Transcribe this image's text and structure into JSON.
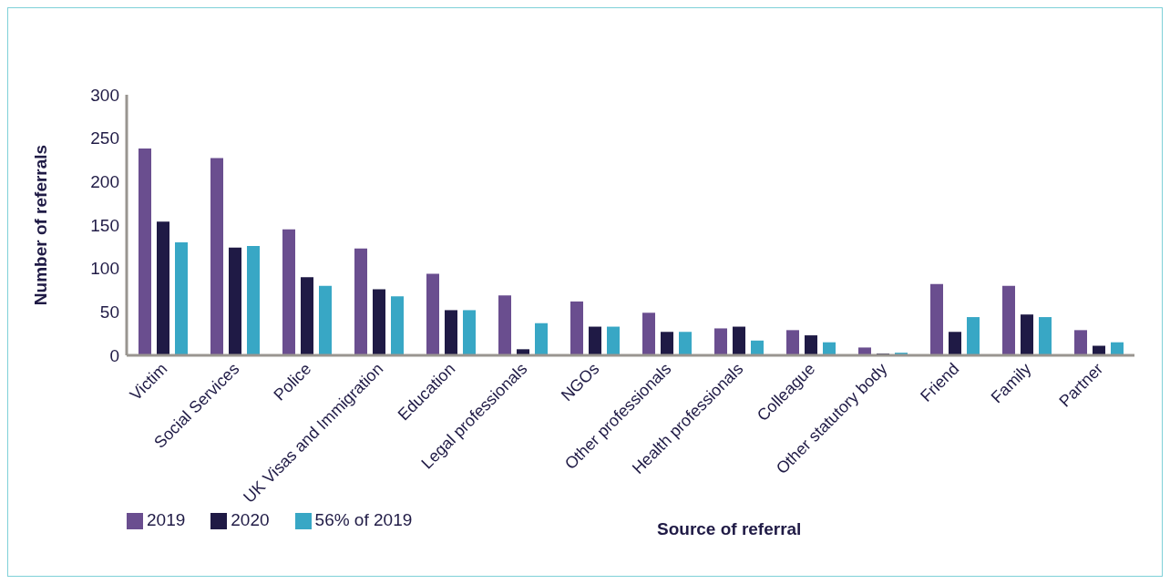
{
  "chart_data": {
    "type": "bar",
    "xlabel": "Source of referral",
    "ylabel": "Number of referrals",
    "categories": [
      "Victim",
      "Social Services",
      "Police",
      "UK Visas and Immigration",
      "Education",
      "Legal professionals",
      "NGOs",
      "Other professionals",
      "Health professionals",
      "Colleague",
      "Other statutory body",
      "Friend",
      "Family",
      "Partner"
    ],
    "series": [
      {
        "name": "2019",
        "color": "#6a4e8f",
        "values": [
          238,
          227,
          145,
          123,
          94,
          69,
          62,
          49,
          31,
          29,
          9,
          82,
          80,
          29
        ]
      },
      {
        "name": "2020",
        "color": "#1f1a45",
        "values": [
          154,
          124,
          90,
          76,
          52,
          7,
          33,
          27,
          33,
          23,
          2,
          27,
          47,
          11
        ]
      },
      {
        "name": "56% of 2019",
        "color": "#38a7c5",
        "values": [
          130,
          126,
          80,
          68,
          52,
          37,
          33,
          27,
          17,
          15,
          3,
          44,
          44,
          15
        ]
      }
    ],
    "ylim": [
      0,
      300
    ],
    "yticks": [
      0,
      50,
      100,
      150,
      200,
      250,
      300
    ],
    "grid": false,
    "legend": "bottom left"
  }
}
